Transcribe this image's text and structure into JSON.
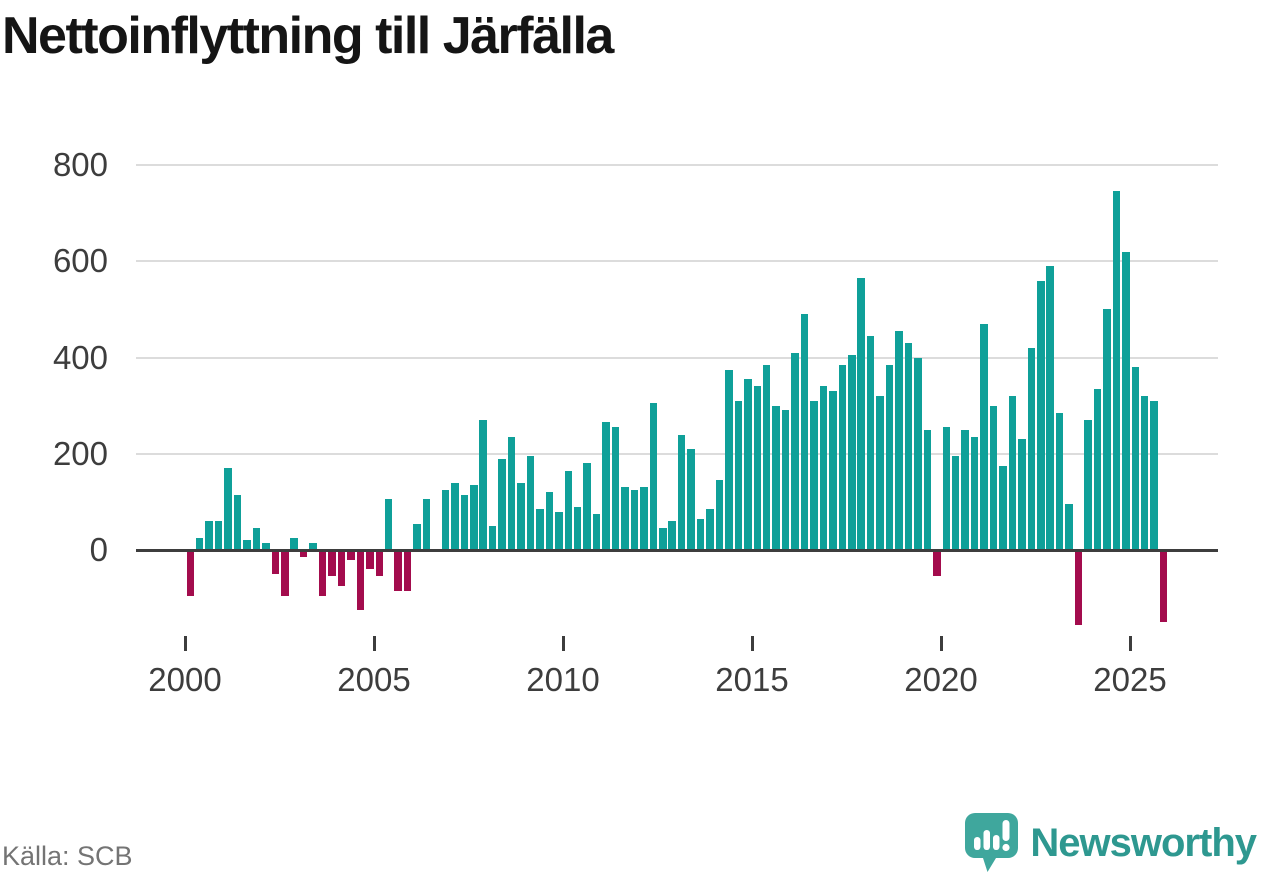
{
  "header": {
    "title": "Nettoinflyttning till Järfälla"
  },
  "footer": {
    "source": "Källa: SCB",
    "brand": "Newsworthy"
  },
  "colors": {
    "positive": "#0FA099",
    "negative": "#A30C4D",
    "grid": "#DCDCDC",
    "axis": "#3D3D3D",
    "tick_label": "#3D3D3D",
    "title": "#151515",
    "source": "#747474",
    "brand_icon": "#3FA79D",
    "brand_text": "#2E9890"
  },
  "chart_data": {
    "type": "bar",
    "title": "Nettoinflyttning till Järfälla",
    "xlabel": "",
    "ylabel": "",
    "x_unit": "quarter",
    "start_period": "2000 Q1",
    "end_period": "2025 Q4",
    "ylim": [
      -200,
      800
    ],
    "yticks": [
      0,
      200,
      400,
      600,
      800
    ],
    "xticks": [
      2000,
      2005,
      2010,
      2015,
      2020,
      2025
    ],
    "grid": "horizontal",
    "legend": "none",
    "values_by_year": [
      {
        "year": 2000,
        "q": [
          -95,
          25,
          60,
          60
        ]
      },
      {
        "year": 2001,
        "q": [
          170,
          115,
          20,
          45
        ]
      },
      {
        "year": 2002,
        "q": [
          15,
          -50,
          -95,
          25
        ]
      },
      {
        "year": 2003,
        "q": [
          -15,
          15,
          -95,
          -55
        ]
      },
      {
        "year": 2004,
        "q": [
          -75,
          -20,
          -125,
          -40
        ]
      },
      {
        "year": 2005,
        "q": [
          -55,
          105,
          -85,
          -85
        ]
      },
      {
        "year": 2006,
        "q": [
          55,
          105,
          0,
          125
        ]
      },
      {
        "year": 2007,
        "q": [
          140,
          115,
          135,
          270
        ]
      },
      {
        "year": 2008,
        "q": [
          50,
          190,
          235,
          140
        ]
      },
      {
        "year": 2009,
        "q": [
          195,
          85,
          120,
          80
        ]
      },
      {
        "year": 2010,
        "q": [
          165,
          90,
          180,
          75
        ]
      },
      {
        "year": 2011,
        "q": [
          265,
          255,
          130,
          125
        ]
      },
      {
        "year": 2012,
        "q": [
          130,
          305,
          45,
          60
        ]
      },
      {
        "year": 2013,
        "q": [
          240,
          210,
          65,
          85
        ]
      },
      {
        "year": 2014,
        "q": [
          145,
          375,
          310,
          355
        ]
      },
      {
        "year": 2015,
        "q": [
          340,
          385,
          300,
          290
        ]
      },
      {
        "year": 2016,
        "q": [
          410,
          490,
          310,
          340
        ]
      },
      {
        "year": 2017,
        "q": [
          330,
          385,
          405,
          565
        ]
      },
      {
        "year": 2018,
        "q": [
          445,
          320,
          385,
          455
        ]
      },
      {
        "year": 2019,
        "q": [
          430,
          400,
          250,
          -55
        ]
      },
      {
        "year": 2020,
        "q": [
          255,
          195,
          250,
          235
        ]
      },
      {
        "year": 2021,
        "q": [
          470,
          300,
          175,
          320
        ]
      },
      {
        "year": 2022,
        "q": [
          230,
          420,
          560,
          590
        ]
      },
      {
        "year": 2023,
        "q": [
          285,
          95,
          -155,
          270
        ]
      },
      {
        "year": 2024,
        "q": [
          335,
          500,
          745,
          620
        ]
      },
      {
        "year": 2025,
        "q": [
          380,
          320,
          310,
          -150
        ]
      }
    ]
  }
}
